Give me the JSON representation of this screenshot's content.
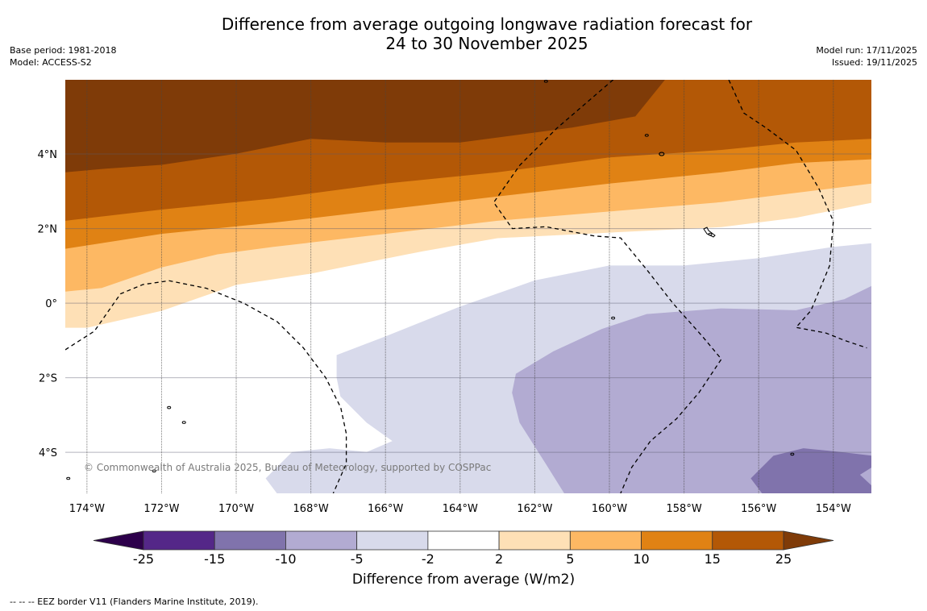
{
  "header": {
    "title_line1": "Difference from average outgoing longwave radiation forecast for",
    "title_line2": "24 to 30 November 2025",
    "base_period": "Base period: 1981-2018",
    "model": "Model: ACCESS-S2",
    "model_run": "Model run: 17/11/2025",
    "issued": "Issued: 19/11/2025"
  },
  "map": {
    "extent": {
      "lon_min": -174.58,
      "lon_max": -152.98,
      "lat_min": -5.1,
      "lat_max": 5.99
    },
    "lon_ticks": [
      {
        "value": -174,
        "label": "174°W"
      },
      {
        "value": -172,
        "label": "172°W"
      },
      {
        "value": -170,
        "label": "170°W"
      },
      {
        "value": -168,
        "label": "168°W"
      },
      {
        "value": -166,
        "label": "166°W"
      },
      {
        "value": -164,
        "label": "164°W"
      },
      {
        "value": -162,
        "label": "162°W"
      },
      {
        "value": -160,
        "label": "160°W"
      },
      {
        "value": -158,
        "label": "158°W"
      },
      {
        "value": -156,
        "label": "156°W"
      },
      {
        "value": -154,
        "label": "154°W"
      }
    ],
    "lat_ticks": [
      {
        "value": 4,
        "label": "4°N"
      },
      {
        "value": 2,
        "label": "2°N"
      },
      {
        "value": 0,
        "label": "0°"
      },
      {
        "value": -2,
        "label": "2°S"
      },
      {
        "value": -4,
        "label": "4°S"
      }
    ],
    "credit": "© Commonwealth of Australia 2025, Bureau of Meteorology, supported by COSPPac",
    "contour_regions": [
      {
        "level": "gt25",
        "color": "#7f3b08",
        "poly": [
          [
            -174.58,
            5.99
          ],
          [
            -158.5,
            5.99
          ],
          [
            -159.3,
            5.0
          ],
          [
            -161,
            4.7
          ],
          [
            -164,
            4.3
          ],
          [
            -166,
            4.3
          ],
          [
            -168,
            4.4
          ],
          [
            -170,
            4.0
          ],
          [
            -172,
            3.7
          ],
          [
            -173.5,
            3.6
          ],
          [
            -174.58,
            3.5
          ]
        ]
      },
      {
        "level": "15to25",
        "color": "#b35806",
        "poly": [
          [
            -174.58,
            3.5
          ],
          [
            -173.5,
            3.6
          ],
          [
            -172,
            3.7
          ],
          [
            -170,
            4.0
          ],
          [
            -168,
            4.4
          ],
          [
            -166,
            4.3
          ],
          [
            -164,
            4.3
          ],
          [
            -161,
            4.7
          ],
          [
            -159.3,
            5.0
          ],
          [
            -158.5,
            5.99
          ],
          [
            -152.98,
            5.99
          ],
          [
            -152.98,
            4.4
          ],
          [
            -155,
            4.3
          ],
          [
            -157,
            4.1
          ],
          [
            -160,
            3.9
          ],
          [
            -163,
            3.5
          ],
          [
            -166,
            3.2
          ],
          [
            -169,
            2.8
          ],
          [
            -172,
            2.5
          ],
          [
            -174.58,
            2.2
          ]
        ]
      },
      {
        "level": "10to15",
        "color": "#e08214",
        "poly": [
          [
            -174.58,
            2.2
          ],
          [
            -172,
            2.5
          ],
          [
            -169,
            2.8
          ],
          [
            -166,
            3.2
          ],
          [
            -163,
            3.5
          ],
          [
            -160,
            3.9
          ],
          [
            -157,
            4.1
          ],
          [
            -155,
            4.3
          ],
          [
            -152.98,
            4.4
          ],
          [
            -152.98,
            3.85
          ],
          [
            -155,
            3.75
          ],
          [
            -157,
            3.5
          ],
          [
            -160,
            3.2
          ],
          [
            -163,
            2.85
          ],
          [
            -166,
            2.5
          ],
          [
            -169,
            2.15
          ],
          [
            -172,
            1.85
          ],
          [
            -174.58,
            1.45
          ]
        ]
      },
      {
        "level": "5to10",
        "color": "#fdb863",
        "poly": [
          [
            -174.58,
            1.45
          ],
          [
            -172,
            1.85
          ],
          [
            -169,
            2.15
          ],
          [
            -166,
            2.5
          ],
          [
            -163,
            2.85
          ],
          [
            -160,
            3.2
          ],
          [
            -157,
            3.5
          ],
          [
            -155,
            3.75
          ],
          [
            -152.98,
            3.85
          ],
          [
            -152.98,
            3.2
          ],
          [
            -155,
            2.95
          ],
          [
            -157,
            2.7
          ],
          [
            -160,
            2.45
          ],
          [
            -163,
            2.2
          ],
          [
            -166,
            1.85
          ],
          [
            -169,
            1.5
          ],
          [
            -170.5,
            1.3
          ],
          [
            -172,
            0.95
          ],
          [
            -173.6,
            0.4
          ],
          [
            -174.58,
            0.3
          ]
        ]
      },
      {
        "level": "2to5",
        "color": "#fee0b6",
        "poly": [
          [
            -174.58,
            0.3
          ],
          [
            -173.6,
            0.4
          ],
          [
            -172,
            0.95
          ],
          [
            -170.5,
            1.3
          ],
          [
            -169,
            1.5
          ],
          [
            -166,
            1.85
          ],
          [
            -163,
            2.2
          ],
          [
            -160,
            2.45
          ],
          [
            -157,
            2.7
          ],
          [
            -155,
            2.95
          ],
          [
            -152.98,
            3.2
          ],
          [
            -152.98,
            2.7
          ],
          [
            -155,
            2.3
          ],
          [
            -157,
            2.05
          ],
          [
            -160,
            1.9
          ],
          [
            -163,
            1.75
          ],
          [
            -165,
            1.4
          ],
          [
            -168,
            0.8
          ],
          [
            -170,
            0.5
          ],
          [
            -172,
            -0.2
          ],
          [
            -174,
            -0.65
          ],
          [
            -174.58,
            -0.65
          ]
        ]
      },
      {
        "level": "m2tom5",
        "color": "#d8daeb",
        "poly": [
          [
            -167.3,
            -1.4
          ],
          [
            -166,
            -0.9
          ],
          [
            -164,
            -0.1
          ],
          [
            -162,
            0.6
          ],
          [
            -160,
            1.0
          ],
          [
            -158,
            1.0
          ],
          [
            -156,
            1.2
          ],
          [
            -154,
            1.5
          ],
          [
            -152.98,
            1.6
          ],
          [
            -152.98,
            -5.1
          ],
          [
            -168.9,
            -5.1
          ],
          [
            -169.2,
            -4.7
          ],
          [
            -168.5,
            -4.0
          ],
          [
            -167.5,
            -3.9
          ],
          [
            -166.5,
            -4.0
          ],
          [
            -165.8,
            -3.7
          ],
          [
            -166.5,
            -3.2
          ],
          [
            -167.2,
            -2.5
          ],
          [
            -167.3,
            -2.0
          ]
        ]
      },
      {
        "level": "m5tom10",
        "color": "#b2abd2",
        "poly": [
          [
            -162.5,
            -1.9
          ],
          [
            -161.5,
            -1.3
          ],
          [
            -160.2,
            -0.7
          ],
          [
            -159,
            -0.3
          ],
          [
            -157,
            -0.15
          ],
          [
            -155,
            -0.2
          ],
          [
            -153.7,
            0.1
          ],
          [
            -152.98,
            0.45
          ],
          [
            -152.98,
            -5.1
          ],
          [
            -161.2,
            -5.1
          ],
          [
            -161.7,
            -4.3
          ],
          [
            -162.4,
            -3.2
          ],
          [
            -162.6,
            -2.4
          ]
        ]
      },
      {
        "level": "m10tom15",
        "color": "#8073ac",
        "poly": [
          [
            -156.2,
            -4.7
          ],
          [
            -155.6,
            -4.1
          ],
          [
            -154.8,
            -3.9
          ],
          [
            -153.8,
            -4.0
          ],
          [
            -152.98,
            -4.1
          ],
          [
            -152.98,
            -4.4
          ],
          [
            -153.3,
            -4.6
          ],
          [
            -152.98,
            -4.9
          ],
          [
            -152.98,
            -5.1
          ],
          [
            -155.9,
            -5.1
          ]
        ]
      }
    ],
    "eez_lines": [
      [
        [
          -174.58,
          -1.25
        ],
        [
          -173.8,
          -0.75
        ],
        [
          -173.1,
          0.25
        ],
        [
          -172.5,
          0.5
        ],
        [
          -171.8,
          0.6
        ],
        [
          -170.8,
          0.4
        ],
        [
          -169.8,
          0.0
        ],
        [
          -168.9,
          -0.5
        ],
        [
          -168.2,
          -1.2
        ],
        [
          -167.6,
          -2.0
        ],
        [
          -167.2,
          -2.8
        ],
        [
          -167.05,
          -3.5
        ],
        [
          -167.05,
          -4.3
        ],
        [
          -167.4,
          -5.1
        ]
      ],
      [
        [
          -159.9,
          5.99
        ],
        [
          -161.4,
          4.7
        ],
        [
          -162.4,
          3.7
        ],
        [
          -163.1,
          2.7
        ],
        [
          -162.6,
          2.0
        ],
        [
          -161.7,
          2.05
        ],
        [
          -160.4,
          1.8
        ],
        [
          -159.7,
          1.75
        ],
        [
          -159,
          0.9
        ],
        [
          -158.3,
          0.0
        ],
        [
          -157.5,
          -0.9
        ],
        [
          -157.0,
          -1.5
        ],
        [
          -157.6,
          -2.4
        ],
        [
          -158.2,
          -3.1
        ],
        [
          -158.9,
          -3.7
        ],
        [
          -159.4,
          -4.4
        ],
        [
          -159.7,
          -5.1
        ]
      ],
      [
        [
          -156.8,
          5.99
        ],
        [
          -156.4,
          5.1
        ],
        [
          -155.8,
          4.7
        ],
        [
          -155.0,
          4.1
        ],
        [
          -154.4,
          3.1
        ],
        [
          -154.0,
          2.2
        ],
        [
          -154.1,
          1.0
        ],
        [
          -154.6,
          -0.2
        ],
        [
          -155.0,
          -0.65
        ],
        [
          -154.2,
          -0.8
        ],
        [
          -153.7,
          -1.0
        ],
        [
          -153.1,
          -1.2
        ]
      ]
    ]
  },
  "colorbar": {
    "label": "Difference from average (W/m2)",
    "under_color": "#2d004b",
    "over_color": "#7f3b08",
    "bins": [
      {
        "from": -25,
        "to": -15,
        "color": "#542788"
      },
      {
        "from": -15,
        "to": -10,
        "color": "#8073ac"
      },
      {
        "from": -10,
        "to": -5,
        "color": "#b2abd2"
      },
      {
        "from": -5,
        "to": -2,
        "color": "#d8daeb"
      },
      {
        "from": -2,
        "to": 2,
        "color": "#ffffff"
      },
      {
        "from": 2,
        "to": 5,
        "color": "#fee0b6"
      },
      {
        "from": 5,
        "to": 10,
        "color": "#fdb863"
      },
      {
        "from": 10,
        "to": 15,
        "color": "#e08214"
      },
      {
        "from": 15,
        "to": 25,
        "color": "#b35806"
      }
    ],
    "tick_labels": [
      "-25",
      "-15",
      "-10",
      "-5",
      "-2",
      "2",
      "5",
      "10",
      "15",
      "25"
    ]
  },
  "footer": {
    "legend": "--  --  -- EEZ border V11 (Flanders Marine Institute, 2019)."
  }
}
